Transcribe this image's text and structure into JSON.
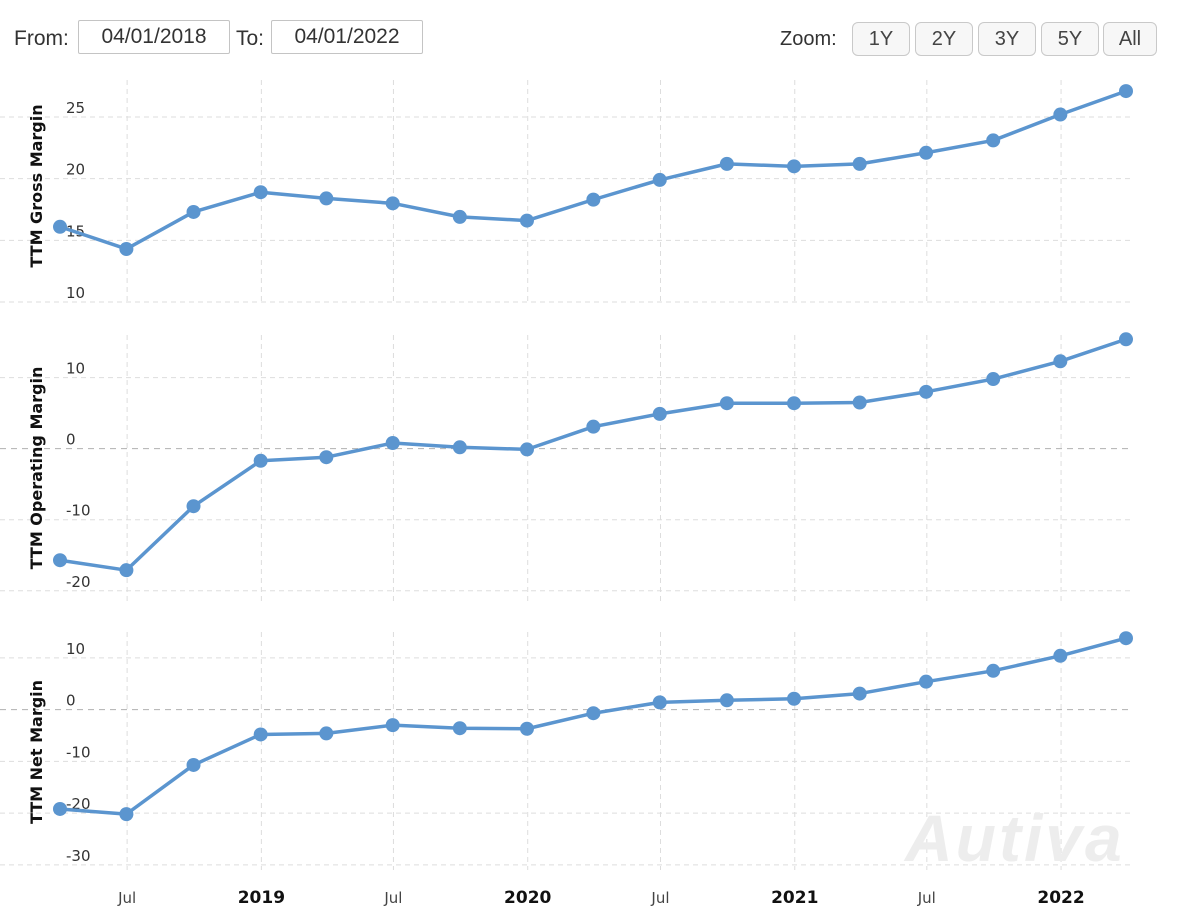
{
  "toolbar": {
    "from_label": "From:",
    "from_value": "04/01/2018",
    "to_label": "To:",
    "to_value": "04/01/2022",
    "zoom_label": "Zoom:",
    "zoom_buttons": [
      "1Y",
      "2Y",
      "3Y",
      "5Y",
      "All"
    ]
  },
  "watermark": "Autiva",
  "colors": {
    "series": "#5b95cf",
    "grid": "#dddddd",
    "zero_line": "#b0b0b0"
  },
  "chart_data": [
    {
      "type": "line",
      "ylabel": "TTM Gross Margin",
      "ylim": [
        10,
        28
      ],
      "yticks": [
        10,
        15,
        20,
        25
      ],
      "x": [
        "2018-03-31",
        "2018-06-30",
        "2018-09-30",
        "2018-12-31",
        "2019-03-31",
        "2019-06-30",
        "2019-09-30",
        "2019-12-31",
        "2020-03-31",
        "2020-06-30",
        "2020-09-30",
        "2020-12-31",
        "2021-03-31",
        "2021-06-30",
        "2021-09-30",
        "2021-12-31",
        "2022-03-31"
      ],
      "series": [
        {
          "values": [
            16.1,
            14.3,
            17.3,
            18.9,
            18.4,
            18.0,
            16.9,
            16.6,
            18.3,
            19.9,
            21.2,
            21.0,
            21.2,
            22.1,
            23.1,
            25.2,
            27.1
          ]
        }
      ]
    },
    {
      "type": "line",
      "ylabel": "TTM Operating Margin",
      "ylim": [
        -22,
        16
      ],
      "yticks": [
        -20,
        -10,
        0,
        10
      ],
      "zero_line": true,
      "x": [
        "2018-03-31",
        "2018-06-30",
        "2018-09-30",
        "2018-12-31",
        "2019-03-31",
        "2019-06-30",
        "2019-09-30",
        "2019-12-31",
        "2020-03-31",
        "2020-06-30",
        "2020-09-30",
        "2020-12-31",
        "2021-03-31",
        "2021-06-30",
        "2021-09-30",
        "2021-12-31",
        "2022-03-31"
      ],
      "series": [
        {
          "values": [
            -15.7,
            -17.1,
            -8.1,
            -1.7,
            -1.2,
            0.8,
            0.2,
            -0.1,
            3.1,
            4.9,
            6.4,
            6.4,
            6.5,
            8.0,
            9.8,
            12.3,
            15.4
          ]
        }
      ]
    },
    {
      "type": "line",
      "ylabel": "TTM Net Margin",
      "ylim": [
        -31,
        15
      ],
      "yticks": [
        -30,
        -20,
        -10,
        0,
        10
      ],
      "zero_line": true,
      "x": [
        "2018-03-31",
        "2018-06-30",
        "2018-09-30",
        "2018-12-31",
        "2019-03-31",
        "2019-06-30",
        "2019-09-30",
        "2019-12-31",
        "2020-03-31",
        "2020-06-30",
        "2020-09-30",
        "2020-12-31",
        "2021-03-31",
        "2021-06-30",
        "2021-09-30",
        "2021-12-31",
        "2022-03-31"
      ],
      "series": [
        {
          "values": [
            -19.2,
            -20.2,
            -10.7,
            -4.8,
            -4.6,
            -3.0,
            -3.6,
            -3.7,
            -0.7,
            1.4,
            1.8,
            2.1,
            3.1,
            5.4,
            7.5,
            10.4,
            13.8
          ]
        }
      ]
    }
  ],
  "x_axis": {
    "ticks": [
      {
        "date": "2018-07-01",
        "label": "Jul",
        "bold": false
      },
      {
        "date": "2019-01-01",
        "label": "2019",
        "bold": true
      },
      {
        "date": "2019-07-01",
        "label": "Jul",
        "bold": false
      },
      {
        "date": "2020-01-01",
        "label": "2020",
        "bold": true
      },
      {
        "date": "2020-07-01",
        "label": "Jul",
        "bold": false
      },
      {
        "date": "2021-01-01",
        "label": "2021",
        "bold": true
      },
      {
        "date": "2021-07-01",
        "label": "Jul",
        "bold": false
      },
      {
        "date": "2022-01-01",
        "label": "2022",
        "bold": true
      }
    ]
  }
}
